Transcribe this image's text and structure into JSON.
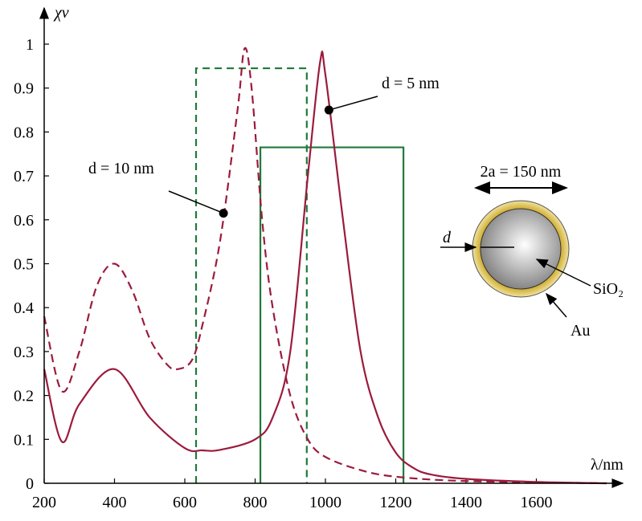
{
  "chart_data": {
    "type": "line",
    "ylabel": "χν",
    "xlabel": "λ/nm",
    "xlim": [
      200,
      1800
    ],
    "ylim": [
      0,
      1
    ],
    "xticks": [
      200,
      400,
      600,
      800,
      1000,
      1200,
      1400,
      1600
    ],
    "yticks": [
      0,
      0.1,
      0.2,
      0.3,
      0.4,
      0.5,
      0.6,
      0.7,
      0.8,
      0.9,
      1
    ],
    "series": [
      {
        "name": "d = 10 nm",
        "color": "#9b1b3c",
        "dashed": true,
        "x": [
          200,
          250,
          300,
          350,
          400,
          450,
          500,
          550,
          580,
          620,
          650,
          700,
          750,
          770,
          790,
          820,
          850,
          900,
          950,
          1000,
          1100,
          1200,
          1400,
          1800
        ],
        "values": [
          0.38,
          0.21,
          0.3,
          0.45,
          0.5,
          0.44,
          0.33,
          0.27,
          0.26,
          0.28,
          0.36,
          0.55,
          0.85,
          0.99,
          0.9,
          0.6,
          0.4,
          0.2,
          0.1,
          0.06,
          0.03,
          0.015,
          0.005,
          0
        ]
      },
      {
        "name": "d = 5 nm",
        "color": "#9b1b3c",
        "dashed": false,
        "x": [
          200,
          250,
          300,
          400,
          500,
          600,
          650,
          700,
          800,
          850,
          900,
          950,
          985,
          1000,
          1050,
          1100,
          1150,
          1200,
          1250,
          1300,
          1400,
          1600,
          1800
        ],
        "values": [
          0.26,
          0.095,
          0.18,
          0.26,
          0.15,
          0.08,
          0.075,
          0.076,
          0.1,
          0.15,
          0.3,
          0.7,
          0.96,
          0.93,
          0.6,
          0.3,
          0.15,
          0.07,
          0.035,
          0.02,
          0.01,
          0.003,
          0
        ]
      }
    ],
    "windows": [
      {
        "color": "#1f7a3a",
        "dashed": true,
        "x": [
          632,
          947
        ],
        "height": 0.945
      },
      {
        "color": "#1f7a3a",
        "dashed": false,
        "x": [
          815,
          1222
        ],
        "height": 0.765
      }
    ],
    "annotations": [
      {
        "text": "d = 10 nm",
        "x": 710,
        "y": 0.615
      },
      {
        "text": "d = 5 nm",
        "x": 1010,
        "y": 0.85
      }
    ],
    "inset": {
      "diameter": "2a = 150 nm",
      "thickness": "d",
      "core": "SiO₂",
      "shell": "Au"
    }
  }
}
